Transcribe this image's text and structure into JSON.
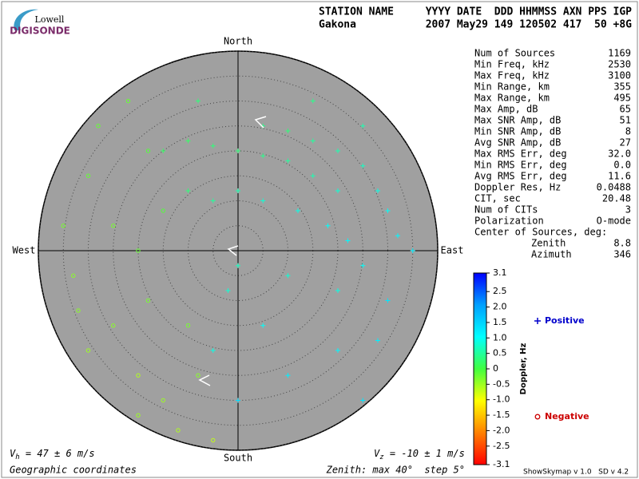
{
  "header": {
    "logo_top": "Lowell",
    "logo_bottom": "DIGISONDE",
    "labels_left": "STATION NAME",
    "labels_right": "YYYY DATE  DDD HHMMSS AXN PPS IGP",
    "values_left": "Gakona",
    "values_right": "2007 May29 149 120502 417  50 +8G"
  },
  "stats": [
    [
      "Num of Sources",
      "1169"
    ],
    [
      "Min Freq, kHz",
      "2530"
    ],
    [
      "Max Freq, kHz",
      "3100"
    ],
    [
      "Min Range, km",
      "355"
    ],
    [
      "Max Range, km",
      "495"
    ],
    [
      "Max Amp, dB",
      "65"
    ],
    [
      "Max SNR Amp, dB",
      "51"
    ],
    [
      "Min SNR Amp, dB",
      "8"
    ],
    [
      "Avg SNR Amp, dB",
      "27"
    ],
    [
      "Max RMS Err, deg",
      "32.0"
    ],
    [
      "Min RMS Err, deg",
      "0.0"
    ],
    [
      "Avg RMS Err, deg",
      "11.6"
    ],
    [
      "Doppler Res, Hz",
      "0.0488"
    ],
    [
      "CIT, sec",
      "20.48"
    ],
    [
      "Num of CITs",
      "3"
    ],
    [
      "Polarization",
      "O-mode"
    ]
  ],
  "center": {
    "title": "Center of Sources, deg:",
    "rows": [
      [
        "Zenith",
        "8.8"
      ],
      [
        "Azimuth",
        "346"
      ]
    ]
  },
  "footer": {
    "vh_symbol": "V",
    "vh_sub": "h",
    "vh_text": " = 47 ± 6 m/s",
    "vz_symbol": "V",
    "vz_sub": "z",
    "vz_text": " = -10 ± 1 m/s",
    "coords": "Geographic coordinates",
    "zenith": "Zenith: max 40°  step 5°",
    "version": "ShowSkymap v 1.0   SD v 4.2"
  },
  "chart_data": {
    "type": "polar-scatter",
    "directions": {
      "north": "North",
      "south": "South",
      "west": "West",
      "east": "East"
    },
    "rlim": [
      0,
      40
    ],
    "rticks": [
      5,
      10,
      15,
      20,
      25,
      30,
      35,
      40
    ],
    "colorbar": {
      "label": "Doppler, Hz",
      "clim": [
        -3.1,
        3.1
      ],
      "colormap": [
        "#ff0000",
        "#ff8000",
        "#ffff00",
        "#40ff40",
        "#00ffff",
        "#00a0ff",
        "#0000ff"
      ],
      "ticks": [
        3.1,
        2.5,
        {
          "value": 2,
          "label": "2.0"
        },
        1.5,
        {
          "value": 1,
          "label": "1.0"
        },
        0.5,
        0,
        -0.5,
        {
          "value": -1,
          "label": "-1.0"
        },
        -1.5,
        {
          "value": -2,
          "label": "-2.0"
        },
        -2.5,
        -3.1
      ]
    },
    "series": [
      {
        "name": "Positive",
        "color": "#0000cc",
        "marker": "+",
        "x": [
          5,
          10,
          15,
          20,
          25,
          28,
          30,
          32,
          20,
          15,
          10,
          5,
          0,
          -5,
          -10,
          -15,
          -10,
          -5,
          0,
          5,
          12,
          18,
          22,
          25,
          20,
          10,
          0,
          -2,
          5,
          10,
          20,
          25,
          28,
          30,
          -5,
          0,
          15,
          -8,
          25,
          35
        ],
        "y": [
          25,
          24,
          22,
          20,
          17,
          12,
          8,
          3,
          12,
          15,
          18,
          19,
          20,
          21,
          22,
          20,
          12,
          10,
          12,
          10,
          8,
          5,
          2,
          -3,
          -8,
          -5,
          -3,
          -8,
          -15,
          -25,
          -20,
          -30,
          -18,
          -10,
          -20,
          -30,
          30,
          30,
          25,
          0
        ],
        "doppler": [
          0.4,
          0.3,
          0.5,
          0.6,
          0.7,
          0.9,
          1.0,
          1.1,
          0.8,
          0.6,
          0.5,
          0.4,
          0.3,
          0.3,
          0.2,
          0.2,
          0.3,
          0.5,
          0.6,
          0.8,
          0.9,
          1.0,
          1.1,
          1.0,
          0.9,
          0.8,
          0.7,
          0.8,
          1.0,
          1.2,
          1.1,
          1.3,
          1.2,
          1.3,
          0.9,
          1.4,
          0.4,
          0.3,
          0.6,
          1.2
        ]
      },
      {
        "name": "Negative",
        "color": "#cc0000",
        "marker": "o",
        "x": [
          -35,
          -33,
          -30,
          -28,
          -25,
          -30,
          -20,
          -15,
          -20,
          -12,
          -20,
          -15,
          -18,
          -22,
          -10,
          -8,
          -5,
          -25,
          -32,
          -18
        ],
        "y": [
          5,
          -5,
          15,
          25,
          -15,
          -20,
          -25,
          -30,
          -33,
          -36,
          0,
          8,
          20,
          30,
          -15,
          -25,
          -38,
          5,
          -12,
          -10
        ],
        "doppler": [
          -0.3,
          -0.4,
          -0.2,
          -0.2,
          -0.4,
          -0.5,
          -0.6,
          -0.5,
          -0.5,
          -0.6,
          -0.2,
          -0.1,
          -0.1,
          -0.2,
          -0.3,
          -0.4,
          -0.7,
          -0.3,
          -0.4,
          -0.3
        ]
      }
    ]
  }
}
